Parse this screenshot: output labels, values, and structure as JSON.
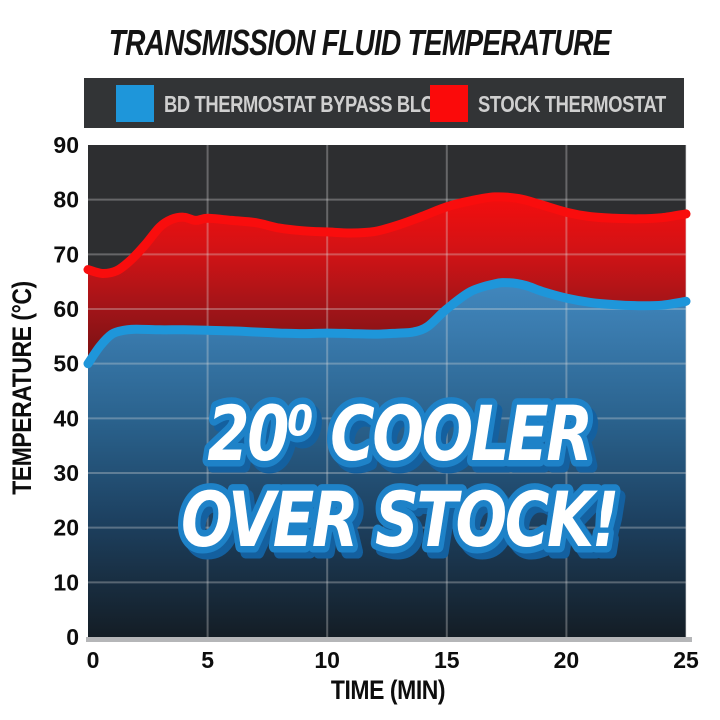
{
  "title": "TRANSMISSION FLUID TEMPERATURE",
  "legend": {
    "background": "#323436",
    "text_color": "#cfcfcf",
    "items": [
      {
        "label": "BD THERMOSTAT BYPASS BLOCK",
        "color": "#1e96da"
      },
      {
        "label": "STOCK THERMOSTAT",
        "color": "#fb0a0a"
      }
    ]
  },
  "overlay": {
    "line1": "20⁰ COOLER",
    "line2": "OVER STOCK!",
    "fill": "#ffffff",
    "outline": "#1e82c8",
    "shadow": "#14609f"
  },
  "chart_data": {
    "type": "area",
    "title": "TRANSMISSION FLUID TEMPERATURE",
    "xlabel": "TIME (MIN)",
    "ylabel": "TEMPERATURE (°C)",
    "xlim": [
      0,
      25
    ],
    "ylim": [
      0,
      90
    ],
    "x_ticks": [
      0,
      5,
      10,
      15,
      20,
      25
    ],
    "y_ticks": [
      0,
      10,
      20,
      30,
      40,
      50,
      60,
      70,
      80,
      90
    ],
    "grid": true,
    "legend_position": "top",
    "plot_background": "#2d2e30",
    "gridline_color": "#dcdcdc",
    "axis_line_color": "#b5b6b8",
    "series": [
      {
        "name": "STOCK THERMOSTAT",
        "color": "#f90d0d",
        "points": [
          [
            0,
            67.2
          ],
          [
            0.6,
            66.5
          ],
          [
            1.2,
            67.0
          ],
          [
            1.8,
            69.0
          ],
          [
            2.4,
            71.8
          ],
          [
            3,
            75.0
          ],
          [
            3.5,
            76.4
          ],
          [
            4,
            76.8
          ],
          [
            4.5,
            76.2
          ],
          [
            5,
            76.6
          ],
          [
            6,
            76.2
          ],
          [
            7,
            75.8
          ],
          [
            8,
            74.8
          ],
          [
            9,
            74.3
          ],
          [
            10,
            74.1
          ],
          [
            11,
            73.9
          ],
          [
            12,
            74.2
          ],
          [
            13,
            75.4
          ],
          [
            14,
            77.0
          ],
          [
            15,
            78.7
          ],
          [
            16,
            79.8
          ],
          [
            17,
            80.5
          ],
          [
            18,
            80.2
          ],
          [
            19,
            79.0
          ],
          [
            20,
            77.7
          ],
          [
            21,
            76.9
          ],
          [
            22,
            76.6
          ],
          [
            23,
            76.5
          ],
          [
            24,
            76.7
          ],
          [
            25,
            77.4
          ]
        ]
      },
      {
        "name": "BD THERMOSTAT BYPASS BLOCK",
        "color": "#1e96da",
        "points": [
          [
            0,
            50.0
          ],
          [
            0.5,
            53.2
          ],
          [
            1,
            55.4
          ],
          [
            1.5,
            56.1
          ],
          [
            2,
            56.3
          ],
          [
            3,
            56.2
          ],
          [
            4,
            56.2
          ],
          [
            5,
            56.1
          ],
          [
            6,
            56.0
          ],
          [
            7,
            55.8
          ],
          [
            8,
            55.6
          ],
          [
            9,
            55.5
          ],
          [
            10,
            55.6
          ],
          [
            11,
            55.5
          ],
          [
            12,
            55.4
          ],
          [
            13,
            55.6
          ],
          [
            13.6,
            55.8
          ],
          [
            14.2,
            56.8
          ],
          [
            15,
            60.0
          ],
          [
            16,
            63.2
          ],
          [
            17,
            64.6
          ],
          [
            17.6,
            64.8
          ],
          [
            18.3,
            64.3
          ],
          [
            19,
            63.2
          ],
          [
            20,
            62.0
          ],
          [
            21,
            61.2
          ],
          [
            22,
            60.8
          ],
          [
            23,
            60.6
          ],
          [
            24,
            60.7
          ],
          [
            25,
            61.4
          ]
        ]
      }
    ]
  }
}
